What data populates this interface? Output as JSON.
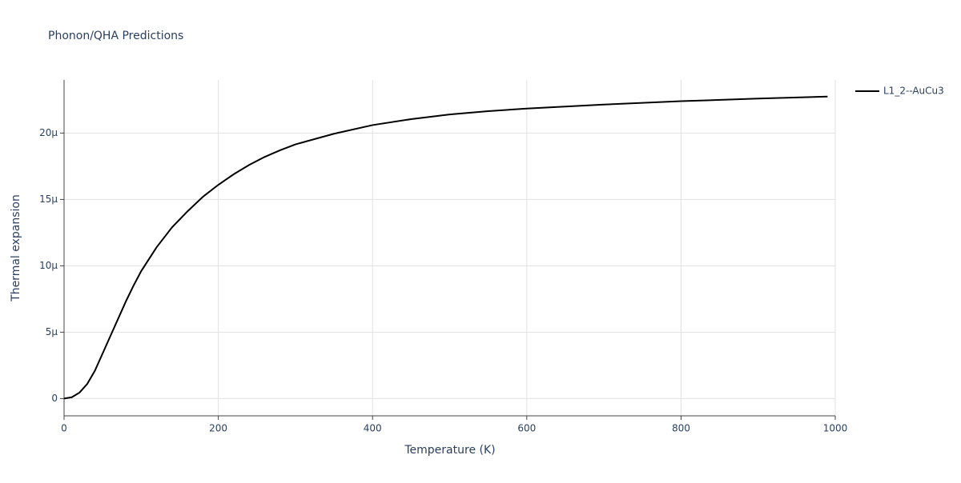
{
  "chart_data": {
    "type": "line",
    "title": "Phonon/QHA Predictions",
    "x_label": "Temperature (K)",
    "y_label": "Thermal expansion",
    "x": [
      0,
      10,
      20,
      30,
      40,
      50,
      60,
      70,
      80,
      90,
      100,
      120,
      140,
      160,
      180,
      200,
      220,
      240,
      260,
      280,
      300,
      350,
      400,
      450,
      500,
      550,
      600,
      700,
      800,
      900,
      990
    ],
    "series": [
      {
        "name": "L1_2--AuCu3",
        "color": "#000000",
        "values": [
          0,
          1e-07,
          4.5e-07,
          1.1e-06,
          2.1e-06,
          3.4e-06,
          4.7e-06,
          6e-06,
          7.3e-06,
          8.5e-06,
          9.6e-06,
          1.14e-05,
          1.29e-05,
          1.41e-05,
          1.52e-05,
          1.61e-05,
          1.69e-05,
          1.76e-05,
          1.82e-05,
          1.87e-05,
          1.915e-05,
          1.995e-05,
          2.06e-05,
          2.105e-05,
          2.14e-05,
          2.165e-05,
          2.185e-05,
          2.215e-05,
          2.24e-05,
          2.26e-05,
          2.275e-05
        ]
      }
    ],
    "xlim": [
      0,
      1000
    ],
    "xticks": [
      0,
      200,
      400,
      600,
      800,
      1000
    ],
    "ylim": [
      -1.3e-06,
      2.4e-05
    ],
    "yticks": [
      {
        "value": 0,
        "label": "0"
      },
      {
        "value": 5e-06,
        "label": "5μ"
      },
      {
        "value": 1e-05,
        "label": "10μ"
      },
      {
        "value": 1.5e-05,
        "label": "15μ"
      },
      {
        "value": 2e-05,
        "label": "20μ"
      }
    ],
    "grid": true,
    "legend": "right"
  }
}
